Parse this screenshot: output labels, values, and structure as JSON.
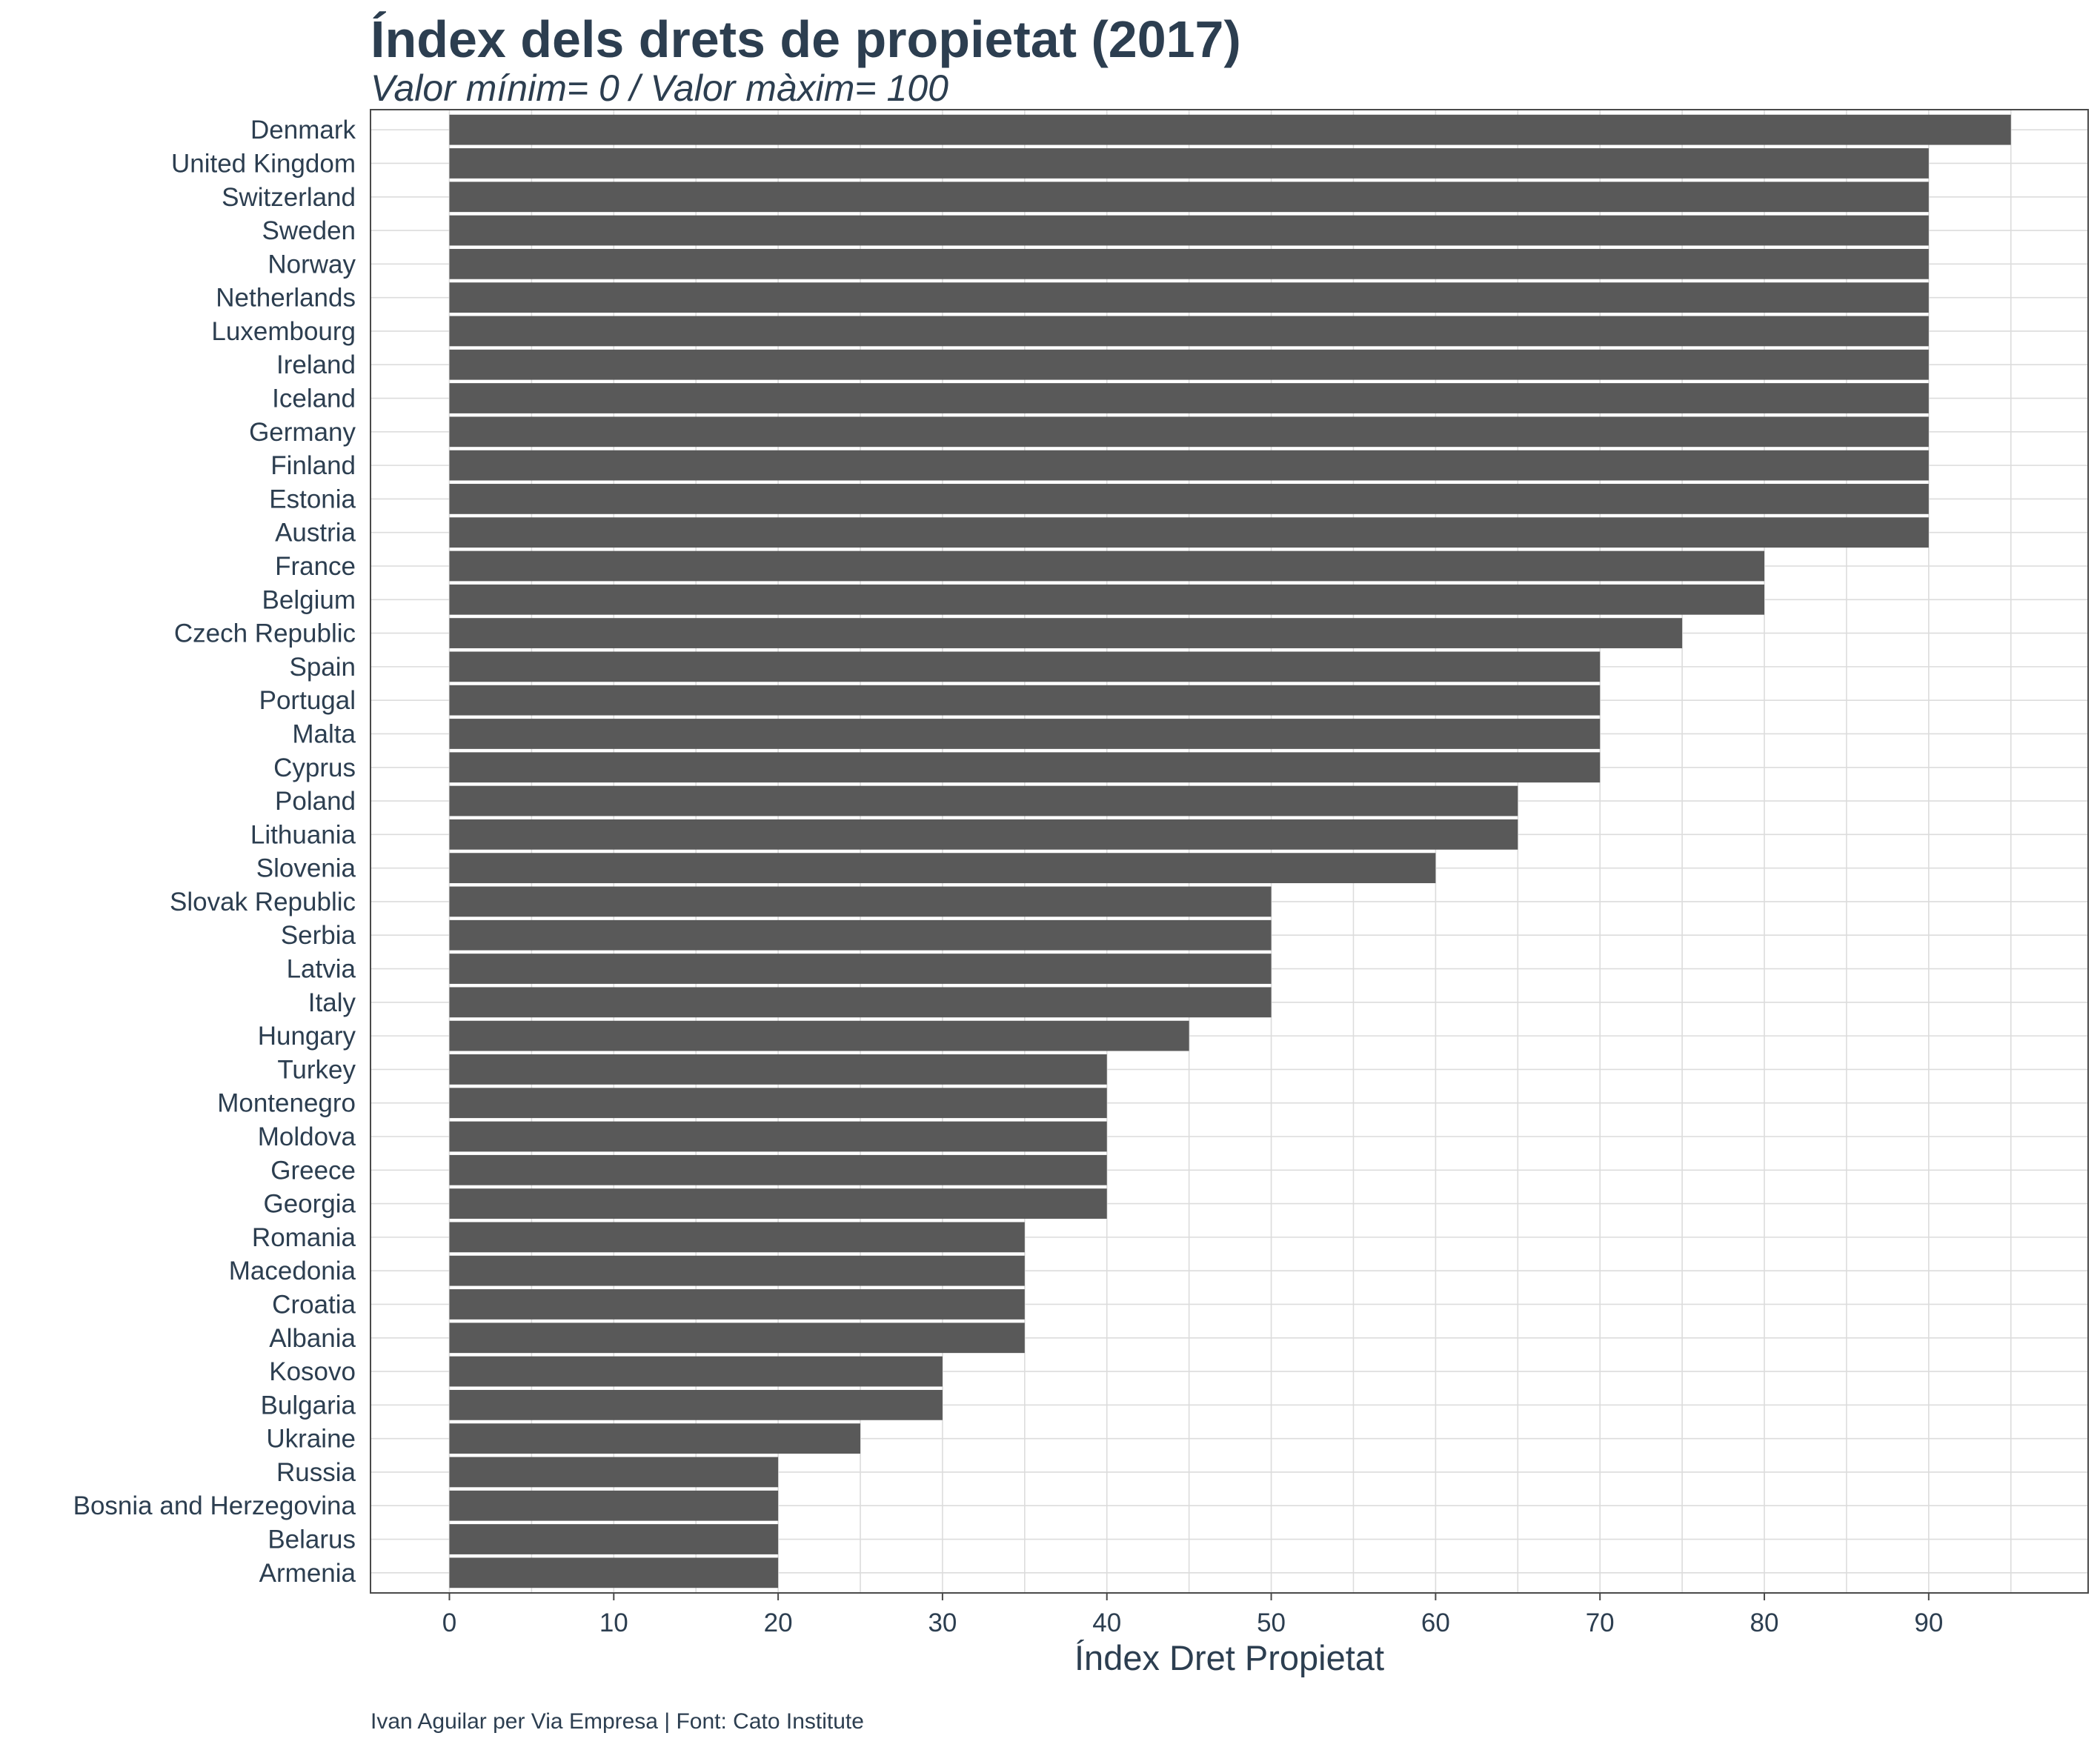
{
  "chart_data": {
    "type": "bar",
    "orientation": "horizontal",
    "title": "Índex dels drets de propietat (2017)",
    "subtitle": "Valor mínim= 0 / Valor màxim= 100",
    "xlabel": "Índex Dret Propietat",
    "ylabel": "",
    "caption": "Ivan Aguilar per Via Empresa | Font: Cato Institute",
    "xlim": [
      -4.8,
      99.7
    ],
    "xticks": [
      0,
      10,
      20,
      30,
      40,
      50,
      60,
      70,
      80,
      90
    ],
    "grid": true,
    "bar_color": "#595959",
    "categories": [
      "Denmark",
      "United Kingdom",
      "Switzerland",
      "Sweden",
      "Norway",
      "Netherlands",
      "Luxembourg",
      "Ireland",
      "Iceland",
      "Germany",
      "Finland",
      "Estonia",
      "Austria",
      "France",
      "Belgium",
      "Czech Republic",
      "Spain",
      "Portugal",
      "Malta",
      "Cyprus",
      "Poland",
      "Lithuania",
      "Slovenia",
      "Slovak Republic",
      "Serbia",
      "Latvia",
      "Italy",
      "Hungary",
      "Turkey",
      "Montenegro",
      "Moldova",
      "Greece",
      "Georgia",
      "Romania",
      "Macedonia",
      "Croatia",
      "Albania",
      "Kosovo",
      "Bulgaria",
      "Ukraine",
      "Russia",
      "Bosnia and Herzegovina",
      "Belarus",
      "Armenia"
    ],
    "values": [
      95,
      90,
      90,
      90,
      90,
      90,
      90,
      90,
      90,
      90,
      90,
      90,
      90,
      80,
      80,
      75,
      70,
      70,
      70,
      70,
      65,
      65,
      60,
      50,
      50,
      50,
      50,
      45,
      40,
      40,
      40,
      40,
      40,
      35,
      35,
      35,
      35,
      30,
      30,
      25,
      20,
      20,
      20,
      20
    ]
  }
}
